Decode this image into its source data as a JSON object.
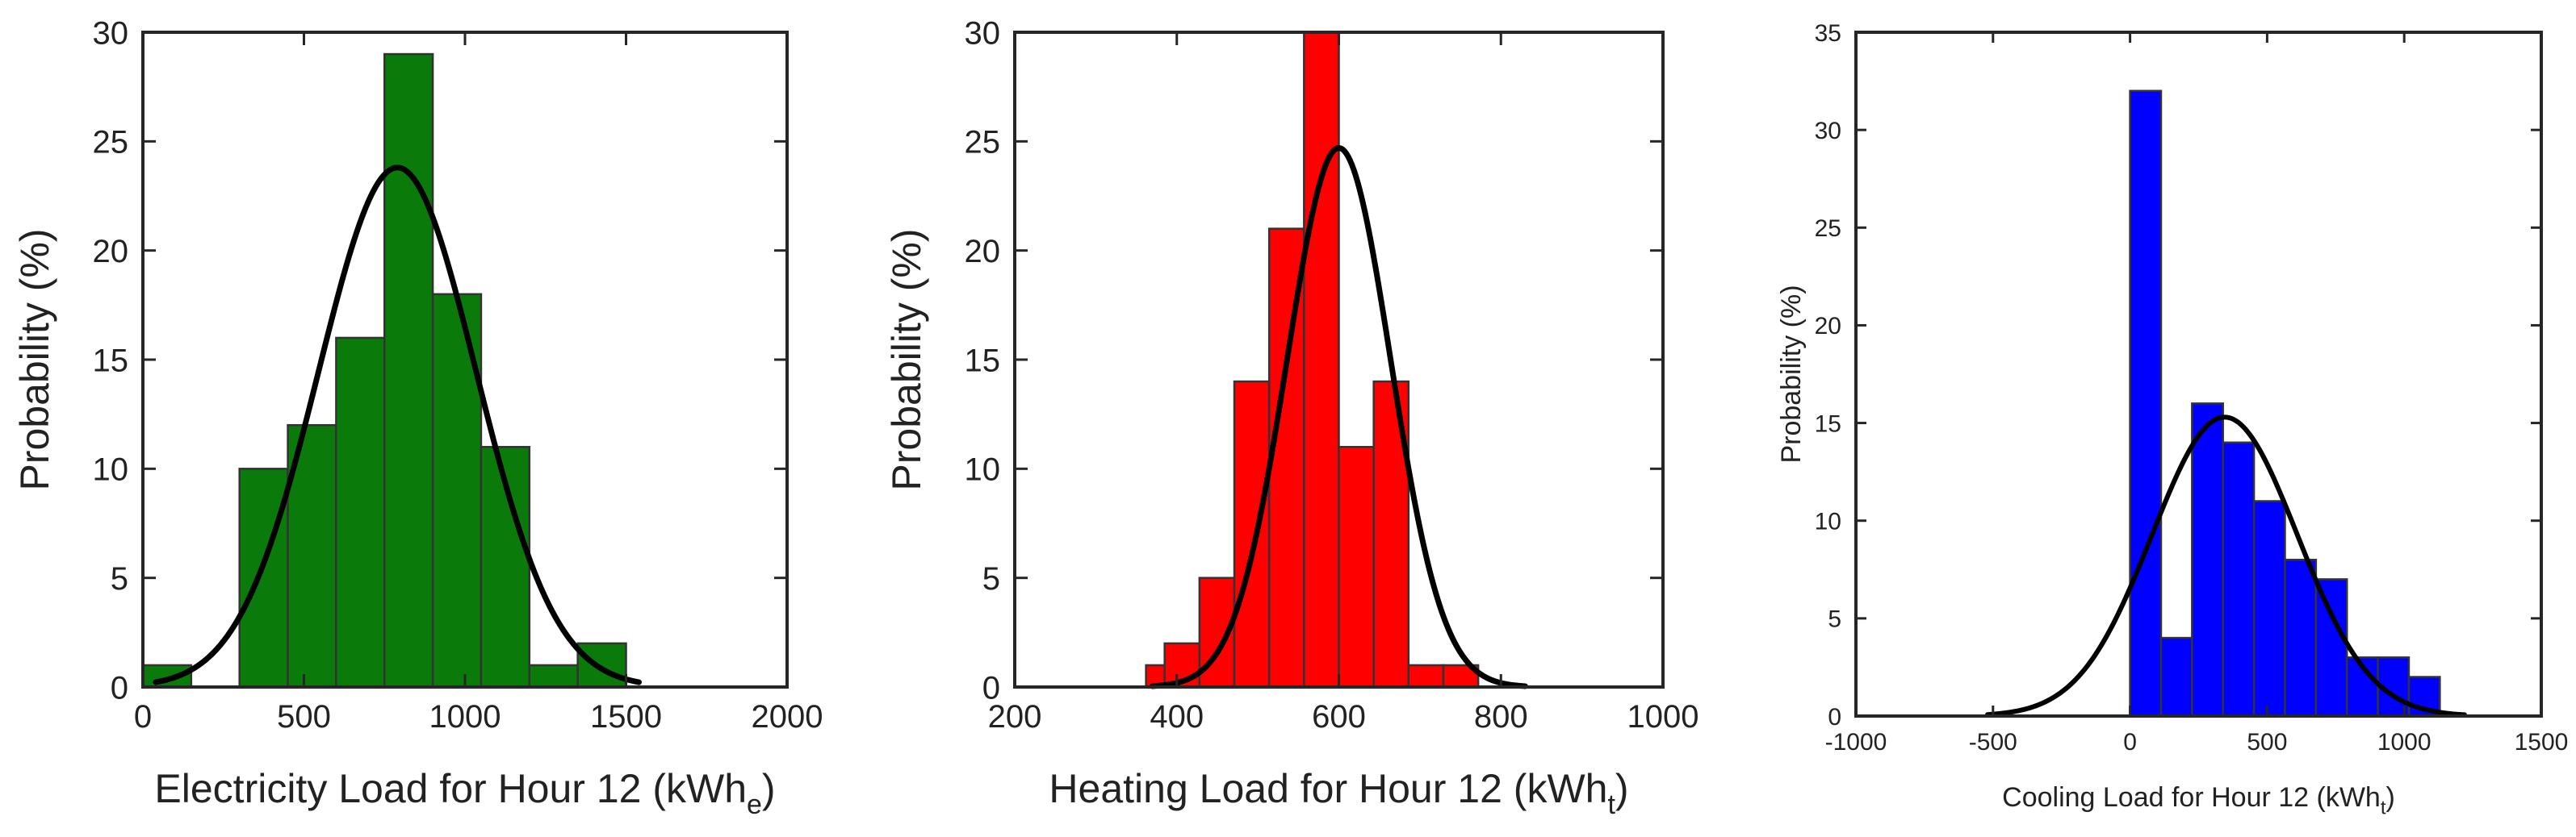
{
  "chart_data": [
    {
      "type": "histogram",
      "id": "electricity",
      "title": "",
      "xlabel_main": "Electricity Load for Hour 12 (kWh",
      "xlabel_sub": "e",
      "xlabel_tail": ")",
      "ylabel": "Probability (%)",
      "xlim": [
        0,
        2000
      ],
      "ylim": [
        0,
        30
      ],
      "xticks": [
        0,
        500,
        1000,
        1500,
        2000
      ],
      "yticks": [
        0,
        5,
        10,
        15,
        20,
        25,
        30
      ],
      "bar_color": "#0a7a0a",
      "bins": [
        {
          "x0": 0,
          "x1": 150,
          "value": 1
        },
        {
          "x0": 300,
          "x1": 450,
          "value": 10
        },
        {
          "x0": 450,
          "x1": 600,
          "value": 12
        },
        {
          "x0": 600,
          "x1": 750,
          "value": 16
        },
        {
          "x0": 750,
          "x1": 900,
          "value": 29
        },
        {
          "x0": 900,
          "x1": 1050,
          "value": 18
        },
        {
          "x0": 1050,
          "x1": 1200,
          "value": 11
        },
        {
          "x0": 1200,
          "x1": 1350,
          "value": 1
        },
        {
          "x0": 1350,
          "x1": 1500,
          "value": 2
        }
      ],
      "fit": {
        "mean": 790,
        "std": 245,
        "peak": 23.8,
        "x_start": 40,
        "x_end": 1540
      }
    },
    {
      "type": "histogram",
      "id": "heating",
      "title": "",
      "xlabel_main": "Heating Load for Hour 12 (kWh",
      "xlabel_sub": "t",
      "xlabel_tail": ")",
      "ylabel": "Probability (%)",
      "xlim": [
        200,
        1000
      ],
      "ylim": [
        0,
        30
      ],
      "xticks": [
        200,
        400,
        600,
        800,
        1000
      ],
      "yticks": [
        0,
        5,
        10,
        15,
        20,
        25,
        30
      ],
      "bar_color": "#ff0000",
      "bins": [
        {
          "x0": 362,
          "x1": 385,
          "value": 1
        },
        {
          "x0": 385,
          "x1": 428,
          "value": 2
        },
        {
          "x0": 428,
          "x1": 471,
          "value": 5
        },
        {
          "x0": 471,
          "x1": 514,
          "value": 14
        },
        {
          "x0": 514,
          "x1": 557,
          "value": 21
        },
        {
          "x0": 557,
          "x1": 600,
          "value": 30
        },
        {
          "x0": 600,
          "x1": 643,
          "value": 11
        },
        {
          "x0": 643,
          "x1": 686,
          "value": 14
        },
        {
          "x0": 686,
          "x1": 729,
          "value": 1
        },
        {
          "x0": 729,
          "x1": 772,
          "value": 1
        }
      ],
      "fit": {
        "mean": 600,
        "std": 64,
        "peak": 24.7,
        "x_start": 370,
        "x_end": 830
      }
    },
    {
      "type": "histogram",
      "id": "cooling",
      "title": "",
      "xlabel_main": "Cooling Load for Hour 12 (kWh",
      "xlabel_sub": "t",
      "xlabel_tail": ")",
      "ylabel": "Probability (%)",
      "xlim": [
        -1000,
        1500
      ],
      "ylim": [
        0,
        35
      ],
      "xticks": [
        -1000,
        -500,
        0,
        500,
        1000,
        1500
      ],
      "yticks": [
        0,
        5,
        10,
        15,
        20,
        25,
        30,
        35
      ],
      "bar_color": "#0000ff",
      "bins": [
        {
          "x0": 0,
          "x1": 113,
          "value": 32
        },
        {
          "x0": 113,
          "x1": 226,
          "value": 4
        },
        {
          "x0": 226,
          "x1": 339,
          "value": 16
        },
        {
          "x0": 339,
          "x1": 452,
          "value": 14
        },
        {
          "x0": 452,
          "x1": 565,
          "value": 11
        },
        {
          "x0": 565,
          "x1": 678,
          "value": 8
        },
        {
          "x0": 678,
          "x1": 791,
          "value": 7
        },
        {
          "x0": 791,
          "x1": 904,
          "value": 3
        },
        {
          "x0": 904,
          "x1": 1017,
          "value": 3
        },
        {
          "x0": 1017,
          "x1": 1130,
          "value": 2
        }
      ],
      "fit": {
        "mean": 345,
        "std": 265,
        "peak": 15.3,
        "x_start": -520,
        "x_end": 1220
      }
    }
  ]
}
